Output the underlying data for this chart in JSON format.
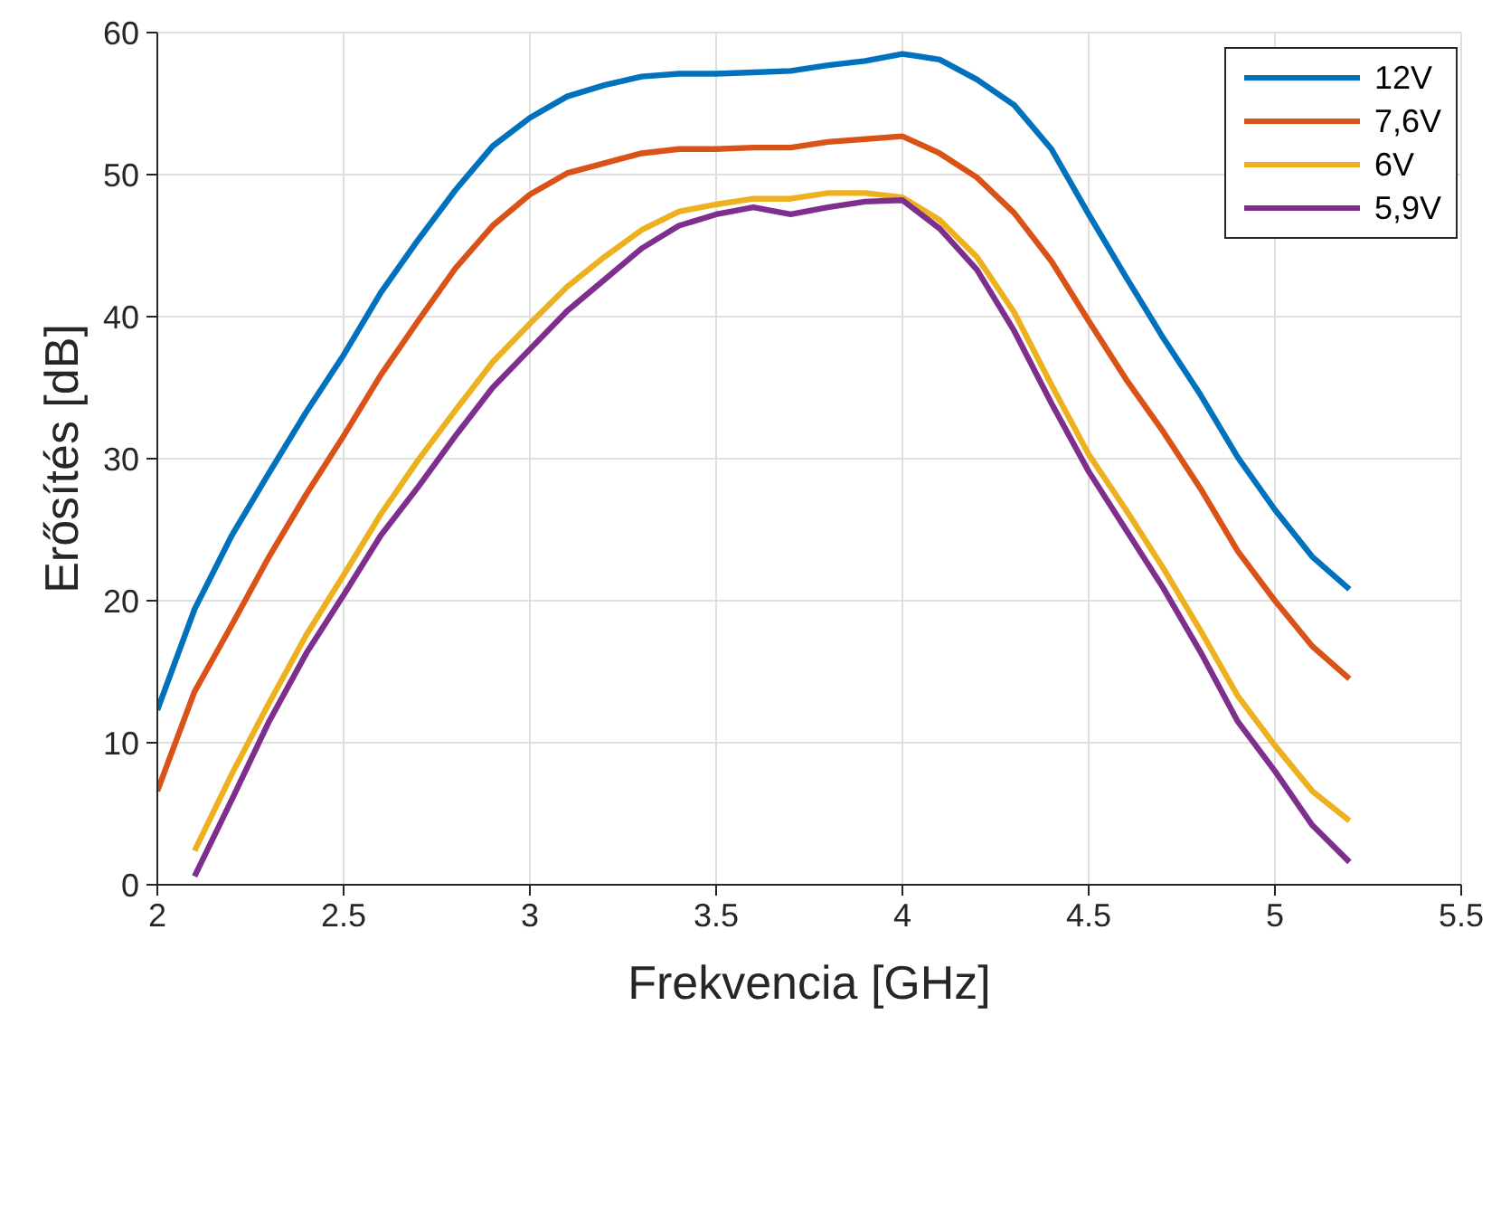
{
  "chart_data": {
    "type": "line",
    "xlabel": "Frekvencia [GHz]",
    "ylabel": "Erősítés [dB]",
    "x": [
      2,
      2.1,
      2.2,
      2.3,
      2.4,
      2.5,
      2.6,
      2.7,
      2.8,
      2.9,
      3,
      3.1,
      3.2,
      3.3,
      3.4,
      3.5,
      3.6,
      3.7,
      3.8,
      3.9,
      4,
      4.1,
      4.2,
      4.3,
      4.4,
      4.5,
      4.6,
      4.7,
      4.8,
      4.9,
      5,
      5.1,
      5.2
    ],
    "series": [
      {
        "name": "12V",
        "color": "#0072bd",
        "values": [
          12.3,
          19.4,
          24.6,
          29,
          33.3,
          37.3,
          41.7,
          45.4,
          48.9,
          52,
          54,
          55.5,
          56.3,
          56.9,
          57.1,
          57.1,
          57.2,
          57.3,
          57.7,
          58,
          58.5,
          58.1,
          56.7,
          54.9,
          51.8,
          47.2,
          42.8,
          38.5,
          34.5,
          30.1,
          26.4,
          23.1,
          20.8
        ]
      },
      {
        "name": "7,6V",
        "color": "#d95319",
        "values": [
          6.6,
          13.6,
          18.3,
          23.1,
          27.5,
          31.6,
          35.9,
          39.7,
          43.4,
          46.4,
          48.6,
          50.1,
          50.8,
          51.5,
          51.8,
          51.8,
          51.9,
          51.9,
          52.3,
          52.5,
          52.7,
          51.5,
          49.8,
          47.3,
          43.9,
          39.7,
          35.6,
          31.9,
          27.9,
          23.5,
          20,
          16.8,
          14.5
        ]
      },
      {
        "name": "6V",
        "color": "#edb120",
        "values": [
          null,
          2.4,
          7.8,
          12.8,
          17.6,
          21.8,
          26.1,
          29.9,
          33.4,
          36.8,
          39.5,
          42.1,
          44.2,
          46.1,
          47.4,
          47.9,
          48.3,
          48.3,
          48.7,
          48.7,
          48.4,
          46.8,
          44.2,
          40.3,
          35.2,
          30.3,
          26.4,
          22.3,
          17.9,
          13.3,
          9.8,
          6.6,
          4.5
        ]
      },
      {
        "name": "5,9V",
        "color": "#7e2f8e",
        "values": [
          null,
          0.6,
          6,
          11.5,
          16.3,
          20.4,
          24.6,
          28,
          31.6,
          35,
          37.7,
          40.4,
          42.6,
          44.8,
          46.4,
          47.2,
          47.7,
          47.2,
          47.7,
          48.1,
          48.2,
          46.2,
          43.3,
          39,
          33.9,
          29.1,
          25,
          20.9,
          16.4,
          11.5,
          8,
          4.2,
          1.6
        ]
      }
    ],
    "xlim": [
      2,
      5.5
    ],
    "xticks": [
      2,
      2.5,
      3,
      3.5,
      4,
      4.5,
      5,
      5.5
    ],
    "ylim": [
      0,
      60
    ],
    "yticks": [
      0,
      10,
      20,
      30,
      40,
      50,
      60
    ],
    "grid": true,
    "legend": "top right",
    "marker": "none",
    "line_style": "solid"
  }
}
